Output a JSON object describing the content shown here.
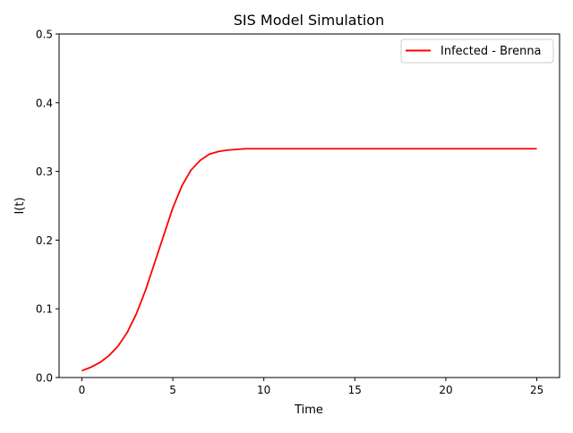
{
  "chart_data": {
    "type": "line",
    "title": "SIS Model Simulation",
    "xlabel": "Time",
    "ylabel": "I(t)",
    "xlim": [
      -1.25,
      26.25
    ],
    "ylim": [
      0,
      0.5
    ],
    "xticks": [
      0,
      5,
      10,
      15,
      20,
      25
    ],
    "yticks": [
      0.0,
      0.1,
      0.2,
      0.3,
      0.4,
      0.5
    ],
    "xtick_labels": [
      "0",
      "5",
      "10",
      "15",
      "20",
      "25"
    ],
    "ytick_labels": [
      "0.0",
      "0.1",
      "0.2",
      "0.3",
      "0.4",
      "0.5"
    ],
    "grid": false,
    "legend_position": "top-right",
    "series": [
      {
        "name": "Infected - Brenna",
        "color": "#ff0000",
        "x": [
          0,
          0.5,
          1,
          1.5,
          2,
          2.5,
          3,
          3.5,
          4,
          4.5,
          5,
          5.5,
          6,
          6.5,
          7,
          7.5,
          8,
          8.5,
          9,
          9.5,
          10,
          11,
          12,
          13,
          14,
          15,
          16,
          17,
          18,
          19,
          20,
          21,
          22,
          23,
          24,
          25
        ],
        "y": [
          0.01,
          0.015,
          0.022,
          0.032,
          0.046,
          0.066,
          0.093,
          0.127,
          0.167,
          0.207,
          0.247,
          0.279,
          0.302,
          0.316,
          0.325,
          0.329,
          0.331,
          0.332,
          0.333,
          0.333,
          0.333,
          0.333,
          0.333,
          0.333,
          0.333,
          0.333,
          0.333,
          0.333,
          0.333,
          0.333,
          0.333,
          0.333,
          0.333,
          0.333,
          0.333,
          0.333
        ]
      }
    ]
  }
}
